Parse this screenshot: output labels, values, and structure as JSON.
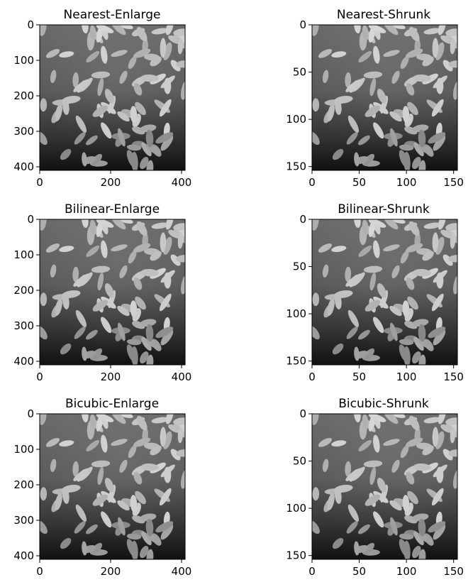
{
  "figure": {
    "panels": [
      {
        "title": "Nearest-Enlarge",
        "xticks": [
          "0",
          "200",
          "400"
        ],
        "yticks": [
          "0",
          "100",
          "200",
          "300",
          "400"
        ],
        "xlim": [
          0,
          410
        ],
        "ylim": [
          410,
          0
        ],
        "xtick_values": [
          0,
          200,
          400
        ],
        "ytick_values": [
          0,
          100,
          200,
          300,
          400
        ]
      },
      {
        "title": "Nearest-Shrunk",
        "xticks": [
          "0",
          "50",
          "100",
          "150"
        ],
        "yticks": [
          "0",
          "50",
          "100",
          "150"
        ],
        "xlim": [
          0,
          154
        ],
        "ylim": [
          154,
          0
        ],
        "xtick_values": [
          0,
          50,
          100,
          150
        ],
        "ytick_values": [
          0,
          50,
          100,
          150
        ]
      },
      {
        "title": "Bilinear-Enlarge",
        "xticks": [
          "0",
          "200",
          "400"
        ],
        "yticks": [
          "0",
          "100",
          "200",
          "300",
          "400"
        ],
        "xlim": [
          0,
          410
        ],
        "ylim": [
          410,
          0
        ],
        "xtick_values": [
          0,
          200,
          400
        ],
        "ytick_values": [
          0,
          100,
          200,
          300,
          400
        ]
      },
      {
        "title": "Bilinear-Shrunk",
        "xticks": [
          "0",
          "50",
          "100",
          "150"
        ],
        "yticks": [
          "0",
          "50",
          "100",
          "150"
        ],
        "xlim": [
          0,
          154
        ],
        "ylim": [
          154,
          0
        ],
        "xtick_values": [
          0,
          50,
          100,
          150
        ],
        "ytick_values": [
          0,
          50,
          100,
          150
        ]
      },
      {
        "title": "Bicubic-Enlarge",
        "xticks": [
          "0",
          "200",
          "400"
        ],
        "yticks": [
          "0",
          "100",
          "200",
          "300",
          "400"
        ],
        "xlim": [
          0,
          410
        ],
        "ylim": [
          410,
          0
        ],
        "xtick_values": [
          0,
          200,
          400
        ],
        "ytick_values": [
          0,
          100,
          200,
          300,
          400
        ]
      },
      {
        "title": "Bicubic-Shrunk",
        "xticks": [
          "0",
          "50",
          "100",
          "150"
        ],
        "yticks": [
          "0",
          "50",
          "100",
          "150"
        ],
        "xlim": [
          0,
          154
        ],
        "ylim": [
          154,
          0
        ],
        "xtick_values": [
          0,
          50,
          100,
          150
        ],
        "ytick_values": [
          0,
          50,
          100,
          150
        ]
      }
    ],
    "image_content": "rice-grains-grayscale"
  }
}
